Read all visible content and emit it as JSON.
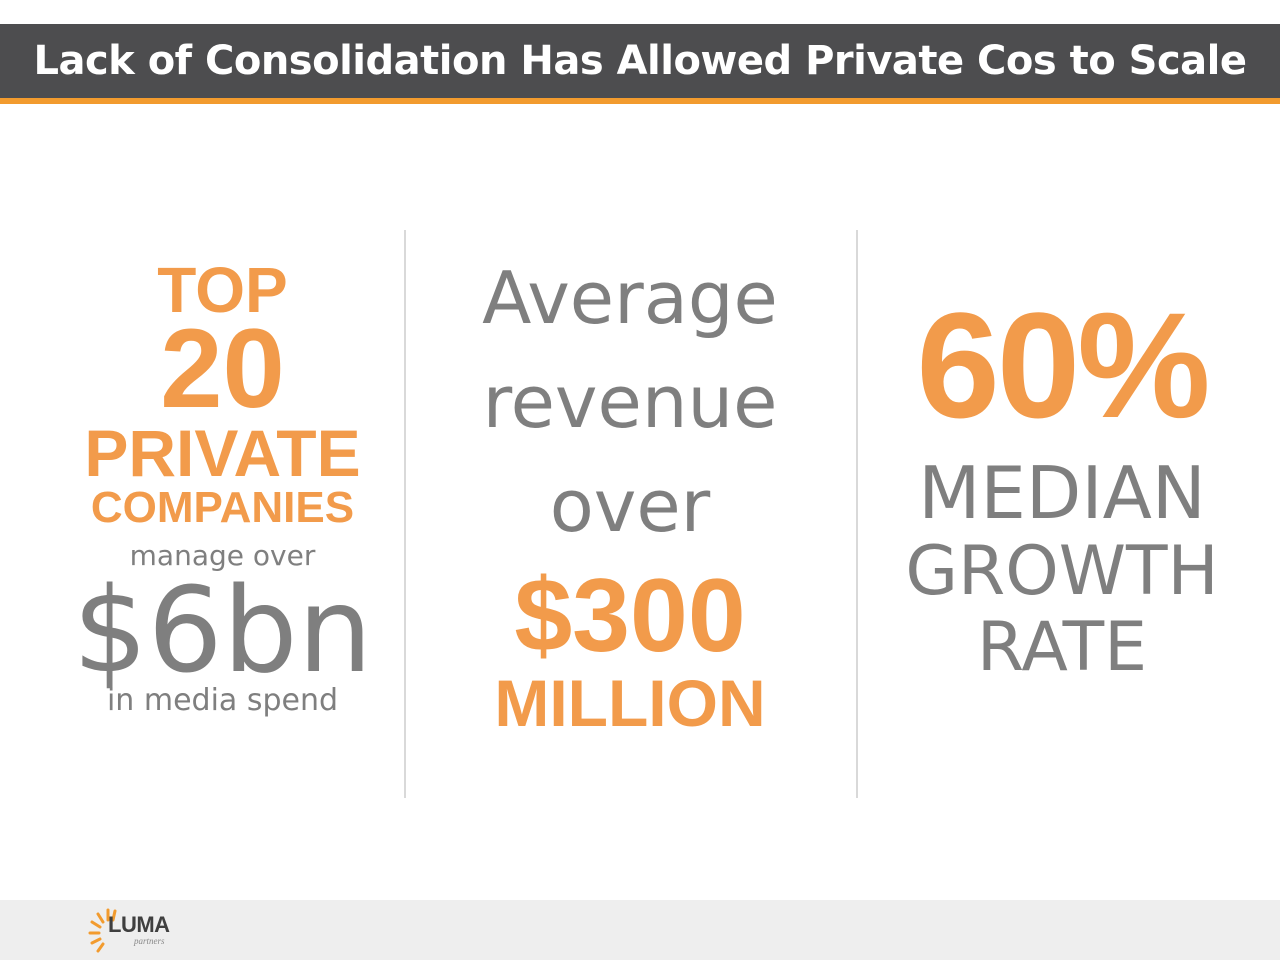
{
  "slide": {
    "title": "Lack of Consolidation Has Allowed Private Cos to Scale"
  },
  "stats": [
    {
      "top": "TOP",
      "number": "20",
      "private": "PRIVATE",
      "companies": "COMPANIES",
      "manage": "manage over",
      "amount": "$6bn",
      "spend": "in media spend"
    },
    {
      "line1": "Average",
      "line2": "revenue",
      "line3": "over",
      "amount": "$300",
      "unit": "MILLION"
    },
    {
      "percent": "60%",
      "line1": "MEDIAN",
      "line2": "GROWTH",
      "line3": "RATE"
    }
  ],
  "footer": {
    "logo_name": "LUMA",
    "logo_sub": "partners"
  },
  "colors": {
    "header_bg": "#4d4d4f",
    "accent": "#f29b2e",
    "highlight": "#f29b4b",
    "text_gray": "#7f7f7f"
  }
}
